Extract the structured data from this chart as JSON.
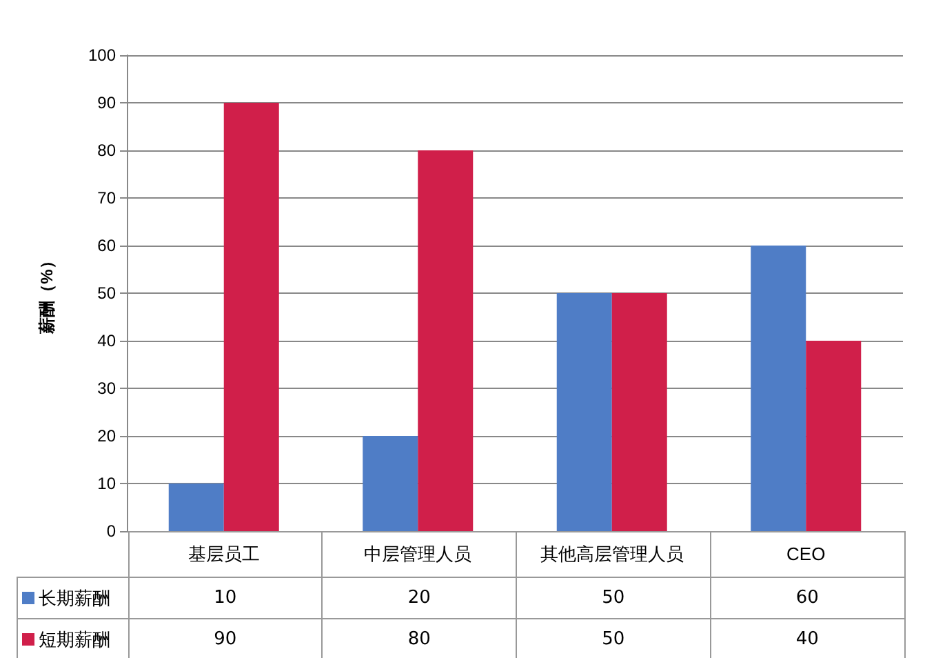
{
  "chart_data": {
    "type": "bar",
    "ylabel": "薪酬（%）",
    "categories": [
      "基层员工",
      "中层管理人员",
      "其他高层管理人员",
      "CEO"
    ],
    "series": [
      {
        "name": "长期薪酬",
        "color": "#4f7dc6",
        "values": [
          10,
          20,
          50,
          60
        ]
      },
      {
        "name": "短期薪酬",
        "color": "#d01f4a",
        "values": [
          90,
          80,
          50,
          40
        ]
      }
    ],
    "ylim": [
      0,
      100
    ],
    "yticks": [
      0,
      10,
      20,
      30,
      40,
      50,
      60,
      70,
      80,
      90,
      100
    ],
    "grid": "y",
    "legend": "bottom",
    "data_labels": true
  }
}
